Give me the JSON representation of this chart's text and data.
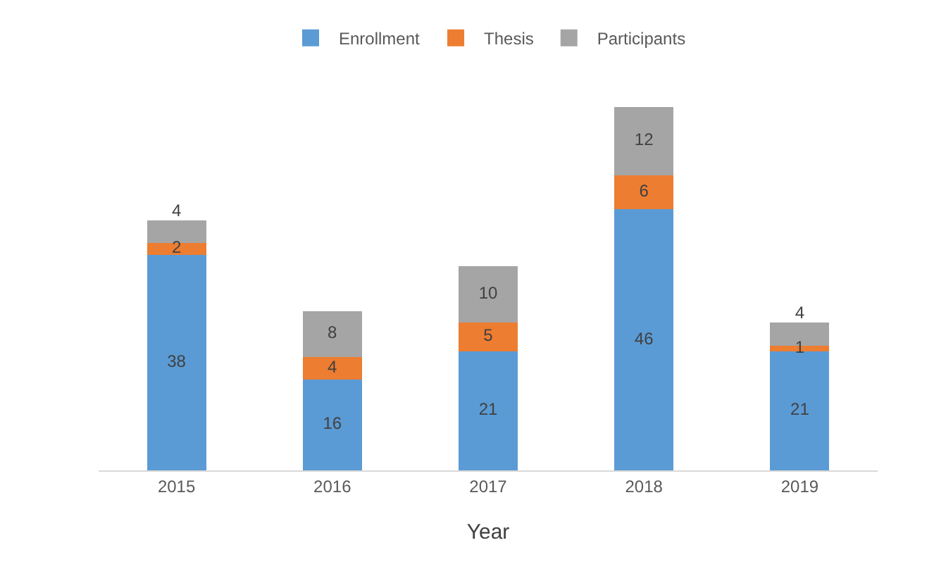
{
  "chart_data": {
    "type": "bar",
    "xlabel": "Year",
    "categories": [
      "2015",
      "2016",
      "2017",
      "2018",
      "2019"
    ],
    "stacked": true,
    "data_labels": true,
    "legend": "top",
    "grid": false,
    "series": [
      {
        "name": "Enrollment",
        "color": "#5b9bd5",
        "values": [
          38,
          16,
          21,
          46,
          21
        ]
      },
      {
        "name": "Thesis",
        "color": "#ed7d31",
        "values": [
          2,
          4,
          5,
          6,
          1
        ]
      },
      {
        "name": "Participants",
        "color": "#a5a5a5",
        "values": [
          4,
          8,
          10,
          12,
          4
        ]
      }
    ]
  }
}
